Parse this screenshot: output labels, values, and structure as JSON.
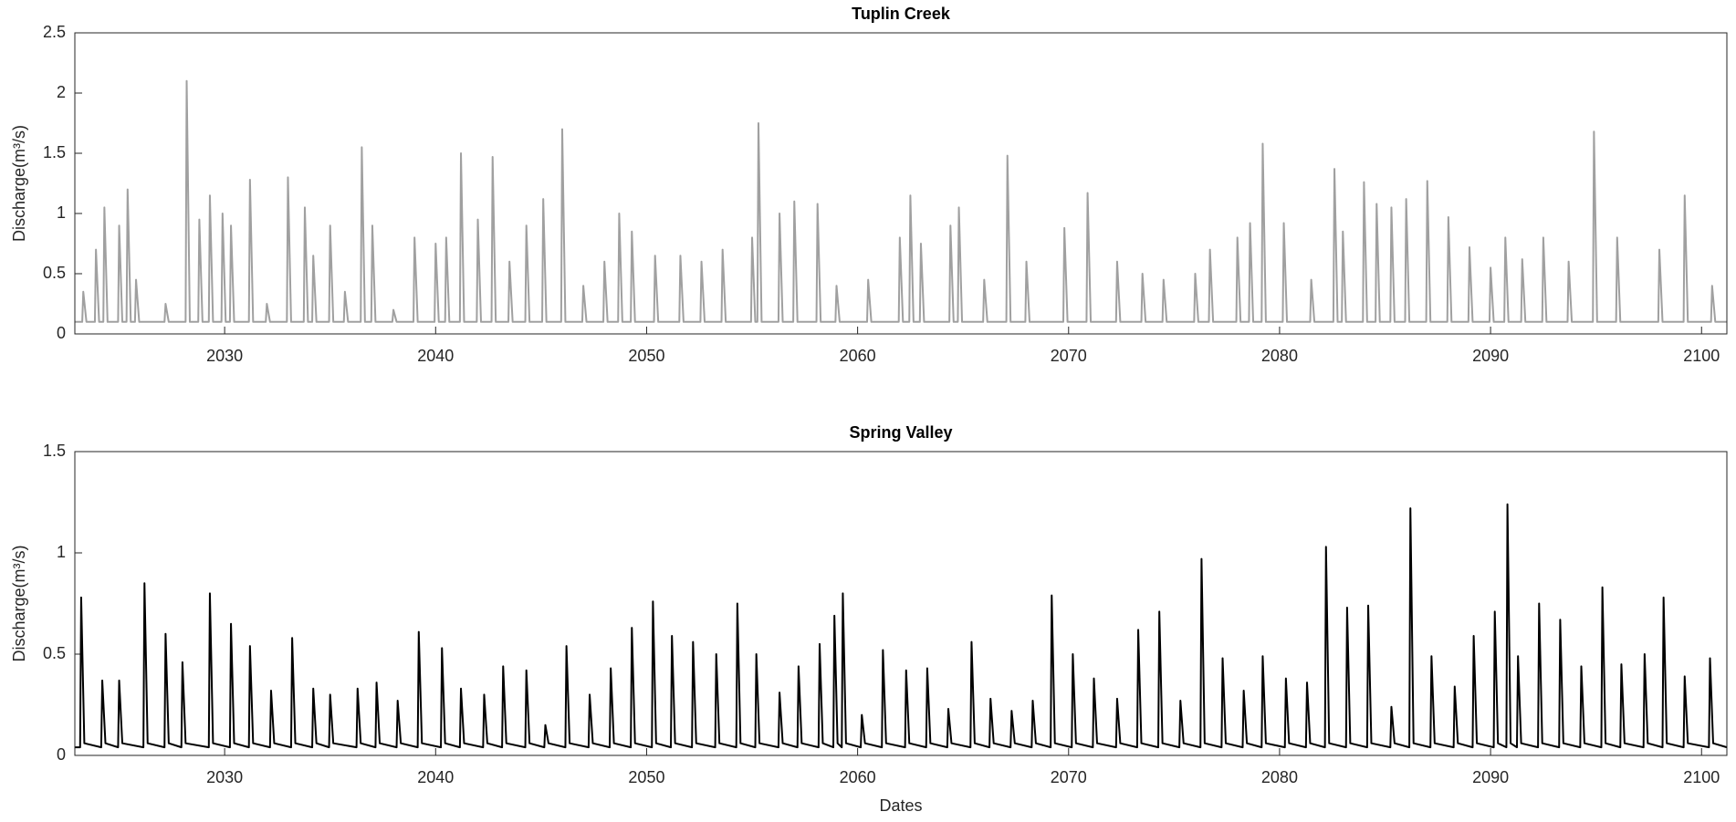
{
  "chart_data": [
    {
      "type": "line",
      "title": "Tuplin Creek",
      "ylabel": "Discharge(m³/s)",
      "xlim": [
        2022.9,
        2101.2
      ],
      "xticks": [
        2030,
        2040,
        2050,
        2060,
        2070,
        2080,
        2090,
        2100
      ],
      "ylim": [
        0,
        2.5
      ],
      "yticks": [
        0,
        0.5,
        1,
        1.5,
        2,
        2.5
      ],
      "x": [
        2022.9,
        2023.25,
        2023.3,
        2023.45,
        2023.85,
        2023.9,
        2024.05,
        2024.25,
        2024.3,
        2024.45,
        2024.95,
        2025.0,
        2025.15,
        2025.35,
        2025.4,
        2025.55,
        2025.75,
        2025.8,
        2025.95,
        2027.15,
        2027.2,
        2027.35,
        2028.15,
        2028.2,
        2028.35,
        2028.75,
        2028.8,
        2028.95,
        2029.25,
        2029.3,
        2029.45,
        2029.85,
        2029.9,
        2030.05,
        2030.25,
        2030.3,
        2030.45,
        2031.15,
        2031.2,
        2031.35,
        2031.95,
        2032.0,
        2032.15,
        2032.95,
        2033.0,
        2033.15,
        2033.75,
        2033.8,
        2033.95,
        2034.15,
        2034.2,
        2034.35,
        2034.95,
        2035.0,
        2035.15,
        2035.65,
        2035.7,
        2035.85,
        2036.45,
        2036.5,
        2036.65,
        2036.95,
        2037.0,
        2037.15,
        2037.95,
        2038.0,
        2038.15,
        2038.95,
        2039.0,
        2039.15,
        2039.95,
        2040.0,
        2040.15,
        2040.45,
        2040.5,
        2040.65,
        2041.15,
        2041.2,
        2041.35,
        2041.95,
        2042.0,
        2042.15,
        2042.65,
        2042.7,
        2042.85,
        2043.45,
        2043.5,
        2043.65,
        2044.25,
        2044.3,
        2044.45,
        2045.05,
        2045.1,
        2045.25,
        2045.95,
        2046.0,
        2046.15,
        2046.95,
        2047.0,
        2047.15,
        2047.95,
        2048.0,
        2048.15,
        2048.65,
        2048.7,
        2048.85,
        2049.25,
        2049.3,
        2049.45,
        2050.35,
        2050.4,
        2050.55,
        2051.55,
        2051.6,
        2051.75,
        2052.55,
        2052.6,
        2052.75,
        2053.55,
        2053.6,
        2053.75,
        2054.95,
        2055.0,
        2055.15,
        2055.25,
        2055.3,
        2055.45,
        2056.25,
        2056.3,
        2056.45,
        2056.95,
        2057.0,
        2057.15,
        2058.05,
        2058.1,
        2058.25,
        2058.95,
        2059.0,
        2059.15,
        2060.45,
        2060.5,
        2060.65,
        2061.95,
        2062.0,
        2062.15,
        2062.45,
        2062.5,
        2062.65,
        2062.95,
        2063.0,
        2063.15,
        2064.35,
        2064.4,
        2064.55,
        2064.75,
        2064.8,
        2064.95,
        2065.95,
        2066.0,
        2066.15,
        2067.05,
        2067.1,
        2067.25,
        2067.95,
        2068.0,
        2068.15,
        2069.75,
        2069.8,
        2069.95,
        2070.85,
        2070.9,
        2071.05,
        2072.25,
        2072.3,
        2072.45,
        2073.45,
        2073.5,
        2073.65,
        2074.45,
        2074.5,
        2074.65,
        2075.95,
        2076.0,
        2076.15,
        2076.65,
        2076.7,
        2076.85,
        2077.95,
        2078.0,
        2078.15,
        2078.55,
        2078.6,
        2078.75,
        2079.15,
        2079.2,
        2079.35,
        2080.15,
        2080.2,
        2080.35,
        2081.45,
        2081.5,
        2081.65,
        2082.55,
        2082.6,
        2082.75,
        2082.95,
        2083.0,
        2083.15,
        2083.95,
        2084.0,
        2084.15,
        2084.55,
        2084.6,
        2084.75,
        2085.25,
        2085.3,
        2085.45,
        2085.95,
        2086.0,
        2086.15,
        2086.95,
        2087.0,
        2087.15,
        2087.95,
        2088.0,
        2088.15,
        2088.95,
        2089.0,
        2089.15,
        2089.95,
        2090.0,
        2090.15,
        2090.65,
        2090.7,
        2090.85,
        2091.45,
        2091.5,
        2091.65,
        2092.45,
        2092.5,
        2092.65,
        2093.65,
        2093.7,
        2093.85,
        2094.85,
        2094.9,
        2095.05,
        2095.95,
        2096.0,
        2096.15,
        2097.95,
        2098.0,
        2098.15,
        2099.15,
        2099.2,
        2099.35,
        2100.45,
        2100.5,
        2100.65,
        2101.2
      ],
      "series": [
        {
          "color": "#a0a0a0",
          "values": [
            0.1,
            0.1,
            0.35,
            0.1,
            0.1,
            0.7,
            0.1,
            0.1,
            1.05,
            0.1,
            0.1,
            0.9,
            0.1,
            0.1,
            1.2,
            0.1,
            0.1,
            0.45,
            0.1,
            0.1,
            0.25,
            0.1,
            0.1,
            2.1,
            0.1,
            0.1,
            0.95,
            0.1,
            0.1,
            1.15,
            0.1,
            0.1,
            1.0,
            0.1,
            0.1,
            0.9,
            0.1,
            0.1,
            1.28,
            0.1,
            0.1,
            0.25,
            0.1,
            0.1,
            1.3,
            0.1,
            0.1,
            1.05,
            0.1,
            0.1,
            0.65,
            0.1,
            0.1,
            0.9,
            0.1,
            0.1,
            0.35,
            0.1,
            0.1,
            1.55,
            0.1,
            0.1,
            0.9,
            0.1,
            0.1,
            0.2,
            0.1,
            0.1,
            0.8,
            0.1,
            0.1,
            0.75,
            0.1,
            0.1,
            0.8,
            0.1,
            0.1,
            1.5,
            0.1,
            0.1,
            0.95,
            0.1,
            0.1,
            1.47,
            0.1,
            0.1,
            0.6,
            0.1,
            0.1,
            0.9,
            0.1,
            0.1,
            1.12,
            0.1,
            0.1,
            1.7,
            0.1,
            0.1,
            0.4,
            0.1,
            0.1,
            0.6,
            0.1,
            0.1,
            1.0,
            0.1,
            0.1,
            0.85,
            0.1,
            0.1,
            0.65,
            0.1,
            0.1,
            0.65,
            0.1,
            0.1,
            0.6,
            0.1,
            0.1,
            0.7,
            0.1,
            0.1,
            0.8,
            0.1,
            0.1,
            1.75,
            0.1,
            0.1,
            1.0,
            0.1,
            0.1,
            1.1,
            0.1,
            0.1,
            1.08,
            0.1,
            0.1,
            0.4,
            0.1,
            0.1,
            0.45,
            0.1,
            0.1,
            0.8,
            0.1,
            0.1,
            1.15,
            0.1,
            0.1,
            0.75,
            0.1,
            0.1,
            0.9,
            0.1,
            0.1,
            1.05,
            0.1,
            0.1,
            0.45,
            0.1,
            0.1,
            1.48,
            0.1,
            0.1,
            0.6,
            0.1,
            0.1,
            0.88,
            0.1,
            0.1,
            1.17,
            0.1,
            0.1,
            0.6,
            0.1,
            0.1,
            0.5,
            0.1,
            0.1,
            0.45,
            0.1,
            0.1,
            0.5,
            0.1,
            0.1,
            0.7,
            0.1,
            0.1,
            0.8,
            0.1,
            0.1,
            0.92,
            0.1,
            0.1,
            1.58,
            0.1,
            0.1,
            0.92,
            0.1,
            0.1,
            0.45,
            0.1,
            0.1,
            1.37,
            0.1,
            0.1,
            0.85,
            0.1,
            0.1,
            1.26,
            0.1,
            0.1,
            1.08,
            0.1,
            0.1,
            1.05,
            0.1,
            0.1,
            1.12,
            0.1,
            0.1,
            1.27,
            0.1,
            0.1,
            0.97,
            0.1,
            0.1,
            0.72,
            0.1,
            0.1,
            0.55,
            0.1,
            0.1,
            0.8,
            0.1,
            0.1,
            0.62,
            0.1,
            0.1,
            0.8,
            0.1,
            0.1,
            0.6,
            0.1,
            0.1,
            1.68,
            0.1,
            0.1,
            0.8,
            0.1,
            0.1,
            0.7,
            0.1,
            0.1,
            1.15,
            0.1,
            0.1,
            0.4,
            0.1,
            0.1
          ]
        }
      ]
    },
    {
      "type": "line",
      "title": "Spring Valley",
      "ylabel": "Discharge(m³/s)",
      "xlabel": "Dates",
      "xlim": [
        2022.9,
        2101.2
      ],
      "xticks": [
        2030,
        2040,
        2050,
        2060,
        2070,
        2080,
        2090,
        2100
      ],
      "ylim": [
        0,
        1.5
      ],
      "yticks": [
        0,
        0.5,
        1,
        1.5
      ],
      "x": [
        2022.9,
        2023.15,
        2023.2,
        2023.35,
        2024.15,
        2024.2,
        2024.35,
        2024.95,
        2025.0,
        2025.15,
        2026.15,
        2026.2,
        2026.35,
        2027.15,
        2027.2,
        2027.35,
        2027.95,
        2028.0,
        2028.15,
        2029.25,
        2029.3,
        2029.45,
        2030.25,
        2030.3,
        2030.45,
        2031.15,
        2031.2,
        2031.35,
        2032.15,
        2032.2,
        2032.35,
        2033.15,
        2033.2,
        2033.35,
        2034.15,
        2034.2,
        2034.35,
        2034.95,
        2035.0,
        2035.15,
        2036.25,
        2036.3,
        2036.45,
        2037.15,
        2037.2,
        2037.35,
        2038.15,
        2038.2,
        2038.35,
        2039.15,
        2039.2,
        2039.35,
        2040.25,
        2040.3,
        2040.45,
        2041.15,
        2041.2,
        2041.35,
        2042.25,
        2042.3,
        2042.45,
        2043.15,
        2043.2,
        2043.35,
        2044.25,
        2044.3,
        2044.45,
        2045.15,
        2045.2,
        2045.35,
        2046.15,
        2046.2,
        2046.35,
        2047.25,
        2047.3,
        2047.45,
        2048.25,
        2048.3,
        2048.45,
        2049.25,
        2049.3,
        2049.45,
        2050.25,
        2050.3,
        2050.45,
        2051.15,
        2051.2,
        2051.35,
        2052.15,
        2052.2,
        2052.35,
        2053.25,
        2053.3,
        2053.45,
        2054.25,
        2054.3,
        2054.45,
        2055.15,
        2055.2,
        2055.35,
        2056.25,
        2056.3,
        2056.45,
        2057.15,
        2057.2,
        2057.35,
        2058.15,
        2058.2,
        2058.35,
        2058.85,
        2058.9,
        2059.05,
        2059.25,
        2059.3,
        2059.45,
        2060.15,
        2060.2,
        2060.35,
        2061.15,
        2061.2,
        2061.35,
        2062.25,
        2062.3,
        2062.45,
        2063.25,
        2063.3,
        2063.45,
        2064.25,
        2064.3,
        2064.45,
        2065.35,
        2065.4,
        2065.55,
        2066.25,
        2066.3,
        2066.45,
        2067.25,
        2067.3,
        2067.45,
        2068.25,
        2068.3,
        2068.45,
        2069.15,
        2069.2,
        2069.35,
        2070.15,
        2070.2,
        2070.35,
        2071.15,
        2071.2,
        2071.35,
        2072.25,
        2072.3,
        2072.45,
        2073.25,
        2073.3,
        2073.45,
        2074.25,
        2074.3,
        2074.45,
        2075.25,
        2075.3,
        2075.45,
        2076.25,
        2076.3,
        2076.45,
        2077.25,
        2077.3,
        2077.45,
        2078.25,
        2078.3,
        2078.45,
        2079.15,
        2079.2,
        2079.35,
        2080.25,
        2080.3,
        2080.45,
        2081.25,
        2081.3,
        2081.45,
        2082.15,
        2082.2,
        2082.35,
        2083.15,
        2083.2,
        2083.35,
        2084.15,
        2084.2,
        2084.35,
        2085.25,
        2085.3,
        2085.45,
        2086.15,
        2086.2,
        2086.35,
        2087.15,
        2087.2,
        2087.35,
        2088.25,
        2088.3,
        2088.45,
        2089.15,
        2089.2,
        2089.35,
        2090.15,
        2090.2,
        2090.35,
        2090.75,
        2090.8,
        2090.95,
        2091.25,
        2091.3,
        2091.45,
        2092.25,
        2092.3,
        2092.45,
        2093.25,
        2093.3,
        2093.45,
        2094.25,
        2094.3,
        2094.45,
        2095.25,
        2095.3,
        2095.45,
        2096.15,
        2096.2,
        2096.35,
        2097.25,
        2097.3,
        2097.45,
        2098.15,
        2098.2,
        2098.35,
        2099.15,
        2099.2,
        2099.35,
        2100.35,
        2100.4,
        2100.55,
        2101.2
      ],
      "series": [
        {
          "color": "#000000",
          "values": [
            0.04,
            0.04,
            0.78,
            0.06,
            0.04,
            0.37,
            0.06,
            0.04,
            0.37,
            0.06,
            0.04,
            0.85,
            0.06,
            0.04,
            0.6,
            0.06,
            0.04,
            0.46,
            0.06,
            0.04,
            0.8,
            0.06,
            0.04,
            0.65,
            0.06,
            0.04,
            0.54,
            0.06,
            0.04,
            0.32,
            0.06,
            0.04,
            0.58,
            0.06,
            0.04,
            0.33,
            0.06,
            0.04,
            0.3,
            0.06,
            0.04,
            0.33,
            0.06,
            0.04,
            0.36,
            0.06,
            0.04,
            0.27,
            0.06,
            0.04,
            0.61,
            0.06,
            0.04,
            0.53,
            0.06,
            0.04,
            0.33,
            0.06,
            0.04,
            0.3,
            0.06,
            0.04,
            0.44,
            0.06,
            0.04,
            0.42,
            0.06,
            0.04,
            0.15,
            0.06,
            0.04,
            0.54,
            0.06,
            0.04,
            0.3,
            0.06,
            0.04,
            0.43,
            0.06,
            0.04,
            0.63,
            0.06,
            0.04,
            0.76,
            0.06,
            0.04,
            0.59,
            0.06,
            0.04,
            0.56,
            0.06,
            0.04,
            0.5,
            0.06,
            0.04,
            0.75,
            0.06,
            0.04,
            0.5,
            0.06,
            0.04,
            0.31,
            0.06,
            0.04,
            0.44,
            0.06,
            0.04,
            0.55,
            0.06,
            0.04,
            0.69,
            0.06,
            0.04,
            0.8,
            0.06,
            0.04,
            0.2,
            0.06,
            0.04,
            0.52,
            0.06,
            0.04,
            0.42,
            0.06,
            0.04,
            0.43,
            0.06,
            0.04,
            0.23,
            0.06,
            0.04,
            0.56,
            0.06,
            0.04,
            0.28,
            0.06,
            0.04,
            0.22,
            0.06,
            0.04,
            0.27,
            0.06,
            0.04,
            0.79,
            0.06,
            0.04,
            0.5,
            0.06,
            0.04,
            0.38,
            0.06,
            0.04,
            0.28,
            0.06,
            0.04,
            0.62,
            0.06,
            0.04,
            0.71,
            0.06,
            0.04,
            0.27,
            0.06,
            0.04,
            0.97,
            0.06,
            0.04,
            0.48,
            0.06,
            0.04,
            0.32,
            0.06,
            0.04,
            0.49,
            0.06,
            0.04,
            0.38,
            0.06,
            0.04,
            0.36,
            0.06,
            0.04,
            1.03,
            0.06,
            0.04,
            0.73,
            0.06,
            0.04,
            0.74,
            0.06,
            0.04,
            0.24,
            0.06,
            0.04,
            1.22,
            0.06,
            0.04,
            0.49,
            0.06,
            0.04,
            0.34,
            0.06,
            0.04,
            0.59,
            0.06,
            0.04,
            0.71,
            0.06,
            0.04,
            1.24,
            0.06,
            0.04,
            0.49,
            0.06,
            0.04,
            0.75,
            0.06,
            0.04,
            0.67,
            0.06,
            0.04,
            0.44,
            0.06,
            0.04,
            0.83,
            0.06,
            0.04,
            0.45,
            0.06,
            0.04,
            0.5,
            0.06,
            0.04,
            0.78,
            0.06,
            0.04,
            0.39,
            0.06,
            0.04,
            0.48,
            0.06,
            0.04
          ]
        }
      ]
    }
  ]
}
